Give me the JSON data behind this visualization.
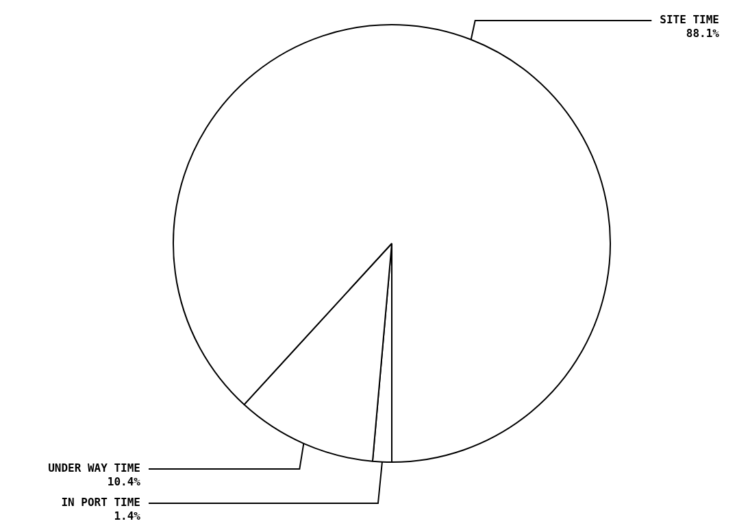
{
  "chart_data": {
    "type": "pie",
    "categories": [
      "IN PORT TIME",
      "UNDER WAY TIME",
      "SITE TIME"
    ],
    "values": [
      1.4,
      10.4,
      88.1
    ],
    "value_labels": [
      "1.4%",
      "10.4%",
      "88.1%"
    ],
    "colors": [
      "#ffffff",
      "#ffffff",
      "#ffffff"
    ],
    "legend": false
  }
}
